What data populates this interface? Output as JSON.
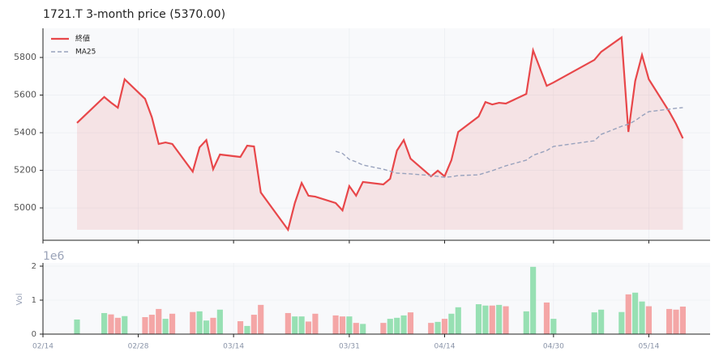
{
  "chart_data": [
    {
      "type": "line",
      "title": "1721.T  3-month price (5370.00)",
      "x": [
        "02/19",
        "02/23",
        "02/24",
        "02/25",
        "02/26",
        "03/01",
        "03/02",
        "03/03",
        "03/04",
        "03/05",
        "03/08",
        "03/09",
        "03/10",
        "03/11",
        "03/12",
        "03/15",
        "03/16",
        "03/17",
        "03/18",
        "03/22",
        "03/23",
        "03/24",
        "03/25",
        "03/26",
        "03/29",
        "03/30",
        "03/31",
        "04/01",
        "04/02",
        "04/05",
        "04/06",
        "04/07",
        "04/08",
        "04/09",
        "04/12",
        "04/13",
        "04/14",
        "04/15",
        "04/16",
        "04/19",
        "04/20",
        "04/21",
        "04/22",
        "04/23",
        "04/26",
        "04/27",
        "04/29",
        "04/30",
        "05/06",
        "05/07",
        "05/10",
        "05/11",
        "05/12",
        "05/13",
        "05/14",
        "05/17",
        "05/18",
        "05/19"
      ],
      "series": [
        {
          "name": "終値",
          "color": "#e8474a",
          "fill": true,
          "dashed": false,
          "values": [
            5452,
            5590,
            5560,
            5533,
            5684,
            5580,
            5482,
            5340,
            5348,
            5340,
            5193,
            5322,
            5361,
            5206,
            5284,
            5271,
            5331,
            5327,
            5082,
            4884,
            5026,
            5133,
            5065,
            5060,
            5026,
            4987,
            5116,
            5065,
            5138,
            5125,
            5155,
            5305,
            5361,
            5262,
            5168,
            5198,
            5168,
            5254,
            5404,
            5486,
            5563,
            5550,
            5559,
            5555,
            5606,
            5838,
            5649,
            5667,
            5787,
            5830,
            5907,
            5404,
            5675,
            5813,
            5684,
            5512,
            5447,
            5370
          ]
        },
        {
          "name": "MA25",
          "color": "#98a2bd",
          "fill": false,
          "dashed": true,
          "values": [
            null,
            null,
            null,
            null,
            null,
            null,
            null,
            null,
            null,
            null,
            null,
            null,
            null,
            null,
            null,
            null,
            null,
            null,
            null,
            null,
            null,
            null,
            null,
            null,
            5301,
            5290,
            5258,
            5245,
            5228,
            5206,
            5195,
            5185,
            5183,
            5181,
            5172,
            5168,
            5163,
            5166,
            5172,
            5176,
            5187,
            5198,
            5211,
            5224,
            5254,
            5280,
            5305,
            5327,
            5357,
            5391,
            5434,
            5445,
            5464,
            5490,
            5512,
            5525,
            5530,
            5533
          ]
        }
      ],
      "xlim": [
        "02/14",
        "05/23"
      ],
      "xticks": [
        "02/14",
        "02/28",
        "03/14",
        "03/31",
        "04/14",
        "04/30",
        "05/14"
      ],
      "ylim": [
        4828,
        5955
      ],
      "yticks": [
        5000,
        5200,
        5400,
        5600,
        5800
      ],
      "grid": true,
      "legend": "upper left"
    },
    {
      "type": "bar",
      "ylabel": "Vol",
      "offset_label": "1e6",
      "values": [
        0.43,
        0.62,
        0.58,
        0.48,
        0.53,
        0.5,
        0.57,
        0.74,
        0.45,
        0.6,
        0.65,
        0.67,
        0.4,
        0.48,
        0.72,
        0.38,
        0.24,
        0.57,
        0.86,
        0.62,
        0.52,
        0.52,
        0.37,
        0.6,
        0.55,
        0.52,
        0.52,
        0.33,
        0.3,
        0.33,
        0.45,
        0.48,
        0.55,
        0.64,
        0.33,
        0.36,
        0.45,
        0.6,
        0.79,
        0.88,
        0.84,
        0.84,
        0.86,
        0.82,
        0.67,
        1.98,
        0.93,
        0.45,
        0.64,
        0.72,
        0.65,
        1.17,
        1.22,
        0.96,
        0.82,
        0.74,
        0.72,
        0.81
      ],
      "colors": [
        "#97e0b3",
        "#97e0b3",
        "#f4a6a6",
        "#f4a6a6",
        "#97e0b3",
        "#f4a6a6",
        "#f4a6a6",
        "#f4a6a6",
        "#97e0b3",
        "#f4a6a6",
        "#f4a6a6",
        "#97e0b3",
        "#97e0b3",
        "#f4a6a6",
        "#97e0b3",
        "#f4a6a6",
        "#97e0b3",
        "#f4a6a6",
        "#f4a6a6",
        "#f4a6a6",
        "#97e0b3",
        "#97e0b3",
        "#f4a6a6",
        "#f4a6a6",
        "#f4a6a6",
        "#f4a6a6",
        "#97e0b3",
        "#f4a6a6",
        "#97e0b3",
        "#f4a6a6",
        "#97e0b3",
        "#97e0b3",
        "#97e0b3",
        "#f4a6a6",
        "#f4a6a6",
        "#97e0b3",
        "#f4a6a6",
        "#97e0b3",
        "#97e0b3",
        "#97e0b3",
        "#97e0b3",
        "#f4a6a6",
        "#97e0b3",
        "#f4a6a6",
        "#97e0b3",
        "#97e0b3",
        "#f4a6a6",
        "#97e0b3",
        "#97e0b3",
        "#97e0b3",
        "#97e0b3",
        "#f4a6a6",
        "#97e0b3",
        "#97e0b3",
        "#f4a6a6",
        "#f4a6a6",
        "#f4a6a6",
        "#f4a6a6"
      ],
      "ylim": [
        0,
        2.095
      ],
      "yticks": [
        0,
        1,
        2
      ]
    }
  ]
}
